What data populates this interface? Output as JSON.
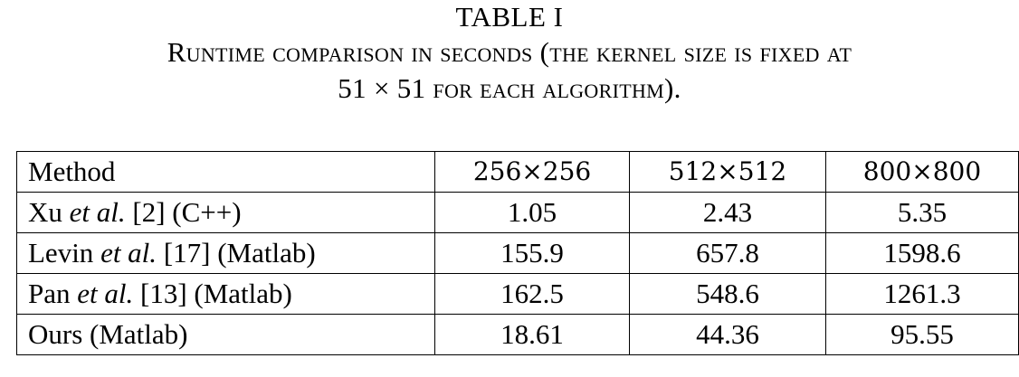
{
  "caption": {
    "table_label": "TABLE I",
    "line1": "Runtime comparison in seconds (the kernel size is fixed at",
    "line2": "51 × 51 for each algorithm)."
  },
  "table": {
    "header": {
      "method": "Method",
      "sizes": [
        "256×256",
        "512×512",
        "800×800"
      ]
    },
    "rows": [
      {
        "method_prefix": "Xu ",
        "method_italic": "et al.",
        "method_suffix": " [2] (C++)",
        "values": [
          "1.05",
          "2.43",
          "5.35"
        ]
      },
      {
        "method_prefix": "Levin ",
        "method_italic": "et al.",
        "method_suffix": " [17] (Matlab)",
        "values": [
          "155.9",
          "657.8",
          "1598.6"
        ]
      },
      {
        "method_prefix": "Pan ",
        "method_italic": "et al.",
        "method_suffix": " [13] (Matlab)",
        "values": [
          "162.5",
          "548.6",
          "1261.3"
        ]
      },
      {
        "method_prefix": "Ours (Matlab)",
        "method_italic": "",
        "method_suffix": "",
        "values": [
          "18.61",
          "44.36",
          "95.55"
        ]
      }
    ]
  }
}
